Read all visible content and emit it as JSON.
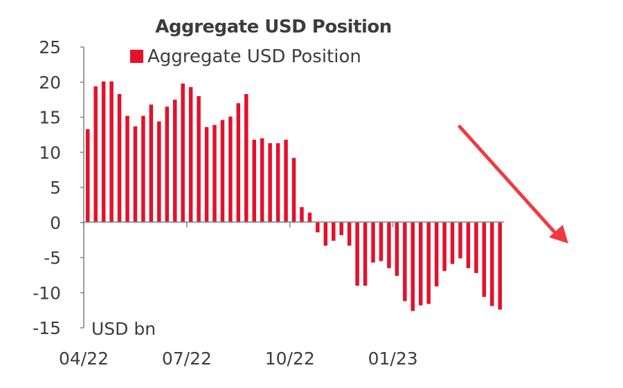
{
  "colors": {
    "bar": "#e4112b",
    "axis": "#7f7f7f",
    "text": "#3c3c3c",
    "arrow": "#f03a40"
  },
  "chart_data": {
    "type": "bar",
    "title": "Aggregate USD Position",
    "ylabel": "USD bn",
    "legend": {
      "entries": [
        "Aggregate USD Position"
      ],
      "placement": "top-left"
    },
    "ylim": [
      -15,
      25
    ],
    "yticks": [
      "25",
      "20",
      "15",
      "10",
      "5",
      "0",
      "-5",
      "-10",
      "-15"
    ],
    "xtick_labels": [
      "04/22",
      "07/22",
      "10/22",
      "01/23"
    ],
    "grid": false,
    "annotation": "red downward arrow",
    "series": [
      {
        "name": "Aggregate USD Position",
        "values": [
          13.3,
          19.4,
          20.1,
          20.1,
          18.3,
          15.2,
          13.7,
          15.2,
          16.8,
          14.4,
          16.5,
          17.5,
          19.8,
          19.3,
          18.0,
          13.6,
          13.9,
          14.6,
          15.1,
          17.0,
          18.3,
          11.8,
          12.0,
          11.3,
          11.3,
          11.8,
          9.2,
          2.2,
          1.4,
          -1.4,
          -3.3,
          -2.6,
          -1.8,
          -3.3,
          -9.0,
          -9.0,
          -5.7,
          -5.5,
          -6.5,
          -7.6,
          -11.2,
          -12.6,
          -11.8,
          -11.6,
          -9.1,
          -6.9,
          -5.9,
          -5.1,
          -6.5,
          -7.2,
          -10.6,
          -11.9,
          -12.4
        ]
      }
    ]
  }
}
